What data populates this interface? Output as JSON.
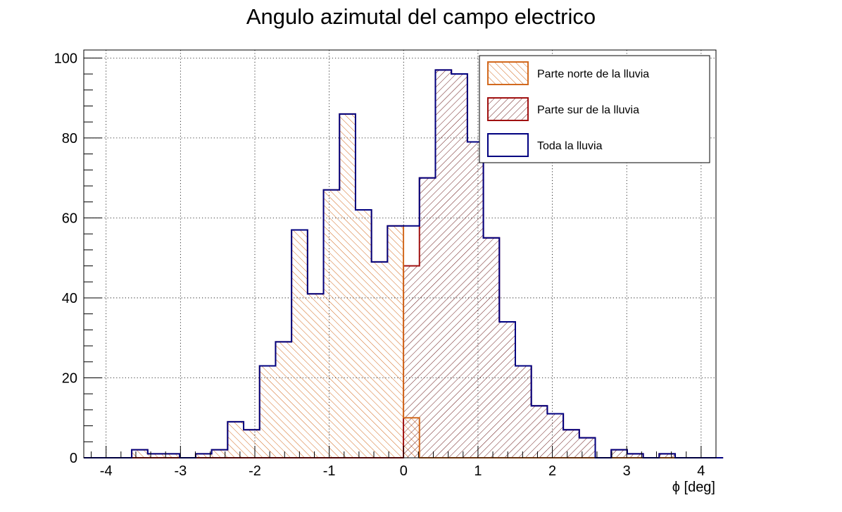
{
  "chart_data": {
    "type": "histogram",
    "title": "Angulo azimutal del campo electrico",
    "xlabel": "ϕ [deg]",
    "ylabel": "",
    "xlim": [
      -4.3,
      4.2
    ],
    "ylim": [
      0,
      102
    ],
    "bin_start": -4.3,
    "bin_width": 0.2149,
    "x_ticks": [
      -4,
      -3,
      -2,
      -1,
      0,
      1,
      2,
      3,
      4
    ],
    "x_tick_labels": [
      "-4",
      "-3",
      "-2",
      "-1",
      "0",
      "1",
      "2",
      "3",
      "4"
    ],
    "y_ticks": [
      0,
      20,
      40,
      60,
      80,
      100
    ],
    "y_tick_labels": [
      "0",
      "20",
      "40",
      "60",
      "80",
      "100"
    ],
    "grid": true,
    "legend_position": "top-right",
    "series": [
      {
        "name": "Parte norte de la lluvia",
        "color": "#d2691e",
        "hatch": "northwest-southeast",
        "values": [
          0,
          0,
          0,
          2,
          1,
          1,
          0,
          1,
          2,
          9,
          7,
          23,
          29,
          57,
          41,
          67,
          86,
          62,
          49,
          58,
          10,
          0,
          0,
          0,
          0,
          0,
          0,
          0,
          0,
          0,
          0,
          0,
          0,
          0,
          0,
          0,
          0,
          0,
          0,
          0
        ]
      },
      {
        "name": "Parte sur de la lluvia",
        "color": "#a01010",
        "hatch": "southwest-northeast",
        "values": [
          0,
          0,
          0,
          0,
          0,
          0,
          0,
          0,
          0,
          0,
          0,
          0,
          0,
          0,
          0,
          0,
          0,
          0,
          0,
          0,
          48,
          70,
          97,
          96,
          79,
          55,
          34,
          23,
          13,
          11,
          7,
          5,
          0,
          2,
          1,
          0,
          1,
          0,
          0,
          0
        ]
      },
      {
        "name": "Toda la lluvia",
        "color": "#000080",
        "hatch": "none",
        "values": [
          0,
          0,
          0,
          2,
          1,
          1,
          0,
          1,
          2,
          9,
          7,
          23,
          29,
          57,
          41,
          67,
          86,
          62,
          49,
          58,
          58,
          70,
          97,
          96,
          79,
          55,
          34,
          23,
          13,
          11,
          7,
          5,
          0,
          2,
          1,
          0,
          1,
          0,
          0,
          0
        ]
      }
    ]
  }
}
